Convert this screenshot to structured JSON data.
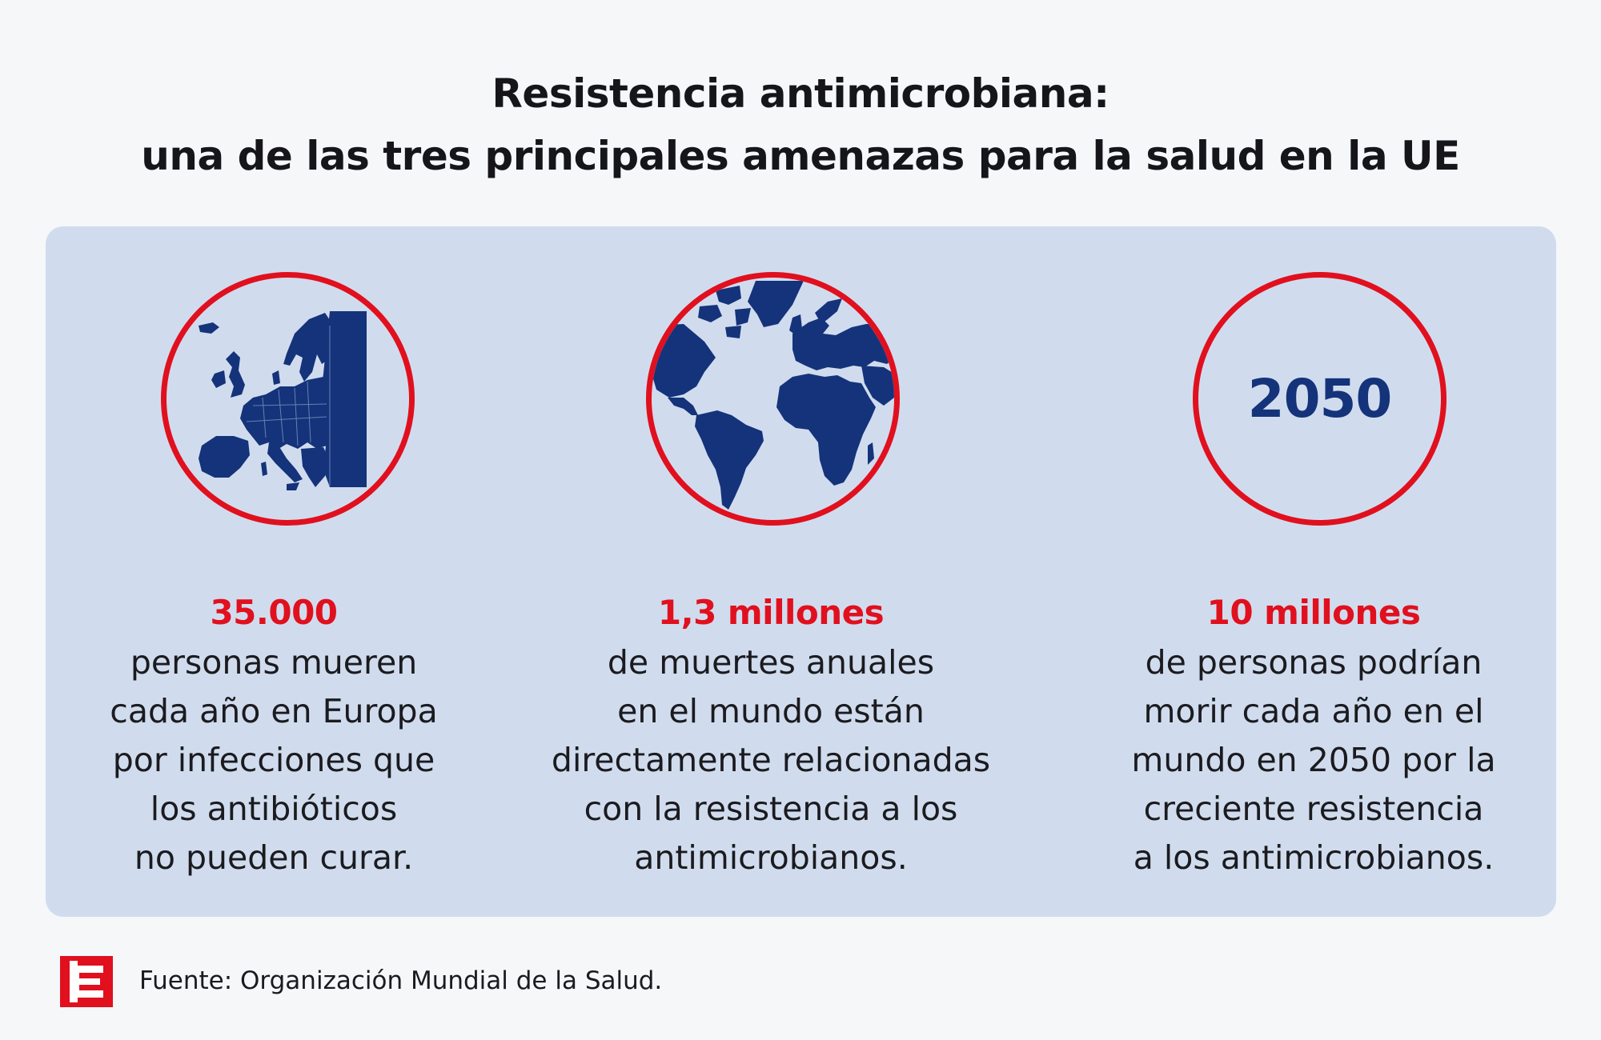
{
  "header": {
    "title_line1": "Resistencia antimicrobiana:",
    "title_line2": "una de las tres principales amenazas para la salud en la UE"
  },
  "colors": {
    "accent_red": "#e1101e",
    "navy": "#14337a",
    "panel_bg": "#d0dcee",
    "page_bg": "#f6f7f9"
  },
  "columns": [
    {
      "icon": "europe-map-icon",
      "stat": "35.000",
      "description": "personas mueren\ncada año en Europa\npor infecciones que\nlos antibióticos\nno pueden curar."
    },
    {
      "icon": "globe-icon",
      "stat": "1,3 millones",
      "description": "de muertes anuales\nen el mundo están\ndirectamente relacionadas\ncon la resistencia a los\nantimicrobianos."
    },
    {
      "icon": "year-badge",
      "year": "2050",
      "stat": "10 millones",
      "description": "de personas podrían\nmorir cada año en el\nmundo en 2050 por la\ncreciente resistencia\na los antimicrobianos."
    }
  ],
  "footer": {
    "logo_letter": "E",
    "source": "Fuente: Organización Mundial de la Salud."
  }
}
